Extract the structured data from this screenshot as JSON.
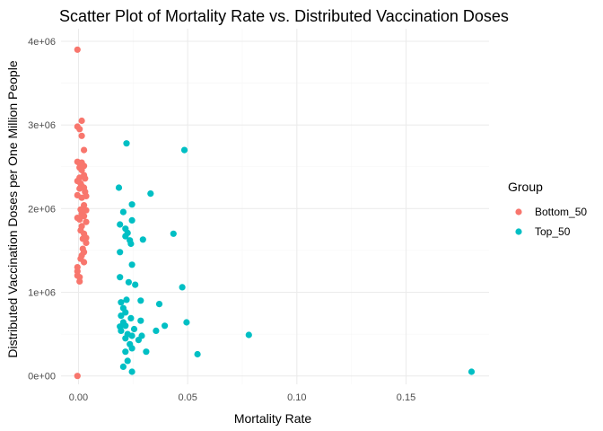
{
  "chart_data": {
    "type": "scatter",
    "title": "Scatter Plot of Mortality Rate vs. Distributed Vaccination Doses",
    "xlabel": "Mortality Rate",
    "ylabel": "Distributed Vaccination Doses per One Million People",
    "xlim": [
      -0.008,
      0.188
    ],
    "ylim": [
      -100000,
      4150000
    ],
    "x_ticks": [
      0.0,
      0.05,
      0.1,
      0.15
    ],
    "x_tick_labels": [
      "0.00",
      "0.05",
      "0.10",
      "0.15"
    ],
    "y_ticks": [
      0,
      1000000,
      2000000,
      3000000,
      4000000
    ],
    "y_tick_labels": [
      "0e+00",
      "1e+06",
      "2e+06",
      "3e+06",
      "4e+06"
    ],
    "grid": true,
    "legend": {
      "title": "Group",
      "position": "right"
    },
    "series": [
      {
        "name": "Bottom_50",
        "color": "#F8766D",
        "points": [
          [
            -0.0005,
            3900000
          ],
          [
            0.0015,
            3050000
          ],
          [
            -0.0005,
            2980000
          ],
          [
            0.0005,
            2950000
          ],
          [
            0.0015,
            2870000
          ],
          [
            0.0025,
            2700000
          ],
          [
            -0.0005,
            2560000
          ],
          [
            0.0005,
            2540000
          ],
          [
            0.0015,
            2550000
          ],
          [
            0.0025,
            2510000
          ],
          [
            0.0005,
            2490000
          ],
          [
            0.0015,
            2460000
          ],
          [
            0.0025,
            2400000
          ],
          [
            0.0005,
            2370000
          ],
          [
            0.003,
            2360000
          ],
          [
            -0.0005,
            2330000
          ],
          [
            0.001,
            2300000
          ],
          [
            0.0015,
            2270000
          ],
          [
            0.0005,
            2240000
          ],
          [
            0.0025,
            2250000
          ],
          [
            0.003,
            2200000
          ],
          [
            -0.0005,
            2160000
          ],
          [
            0.0015,
            2130000
          ],
          [
            0.0035,
            2150000
          ],
          [
            0.0025,
            2040000
          ],
          [
            0.001,
            1990000
          ],
          [
            0.0035,
            1980000
          ],
          [
            0.0015,
            1940000
          ],
          [
            0.0025,
            1910000
          ],
          [
            -0.0005,
            1890000
          ],
          [
            0.0005,
            1870000
          ],
          [
            0.0035,
            1840000
          ],
          [
            0.0015,
            1790000
          ],
          [
            0.001,
            1740000
          ],
          [
            0.0025,
            1700000
          ],
          [
            0.0035,
            1650000
          ],
          [
            0.002,
            1640000
          ],
          [
            0.0035,
            1590000
          ],
          [
            0.002,
            1520000
          ],
          [
            0.0025,
            1480000
          ],
          [
            0.0015,
            1440000
          ],
          [
            0.001,
            1400000
          ],
          [
            0.0025,
            1360000
          ],
          [
            -0.0005,
            1300000
          ],
          [
            -0.0005,
            1250000
          ],
          [
            0.0005,
            1180000
          ],
          [
            0.0005,
            1130000
          ],
          [
            -0.0005,
            1200000
          ],
          [
            -0.0005,
            0
          ]
        ]
      },
      {
        "name": "Top_50",
        "color": "#00BFC4",
        "points": [
          [
            0.022,
            2780000
          ],
          [
            0.0485,
            2700000
          ],
          [
            0.0185,
            2250000
          ],
          [
            0.033,
            2180000
          ],
          [
            0.0245,
            2050000
          ],
          [
            0.0205,
            1960000
          ],
          [
            0.0245,
            1860000
          ],
          [
            0.019,
            1810000
          ],
          [
            0.0215,
            1760000
          ],
          [
            0.0225,
            1710000
          ],
          [
            0.0215,
            1670000
          ],
          [
            0.0235,
            1620000
          ],
          [
            0.0295,
            1630000
          ],
          [
            0.0435,
            1700000
          ],
          [
            0.024,
            1580000
          ],
          [
            0.019,
            1480000
          ],
          [
            0.0245,
            1330000
          ],
          [
            0.019,
            1180000
          ],
          [
            0.023,
            1120000
          ],
          [
            0.026,
            1090000
          ],
          [
            0.0475,
            1060000
          ],
          [
            0.022,
            910000
          ],
          [
            0.0195,
            880000
          ],
          [
            0.0285,
            900000
          ],
          [
            0.037,
            860000
          ],
          [
            0.0205,
            810000
          ],
          [
            0.0215,
            760000
          ],
          [
            0.0195,
            720000
          ],
          [
            0.024,
            690000
          ],
          [
            0.0205,
            640000
          ],
          [
            0.0285,
            660000
          ],
          [
            0.0495,
            640000
          ],
          [
            0.019,
            590000
          ],
          [
            0.0215,
            600000
          ],
          [
            0.0255,
            560000
          ],
          [
            0.0395,
            600000
          ],
          [
            0.0195,
            540000
          ],
          [
            0.0225,
            500000
          ],
          [
            0.0245,
            480000
          ],
          [
            0.029,
            480000
          ],
          [
            0.0355,
            540000
          ],
          [
            0.0215,
            450000
          ],
          [
            0.0275,
            430000
          ],
          [
            0.0235,
            380000
          ],
          [
            0.0245,
            330000
          ],
          [
            0.0215,
            290000
          ],
          [
            0.031,
            290000
          ],
          [
            0.0545,
            260000
          ],
          [
            0.078,
            490000
          ],
          [
            0.0225,
            180000
          ],
          [
            0.0205,
            110000
          ],
          [
            0.0245,
            50000
          ],
          [
            0.18,
            50000
          ]
        ]
      }
    ]
  }
}
